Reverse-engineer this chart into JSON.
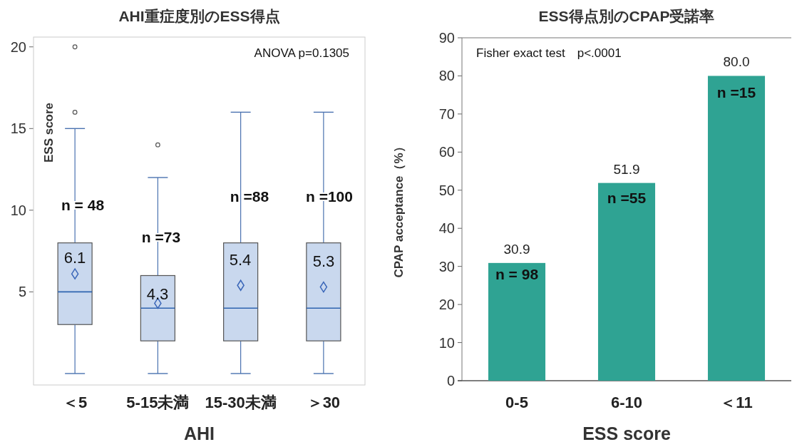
{
  "chart_data": [
    {
      "type": "box",
      "title": "AHI重症度別のESS得点",
      "xlabel": "AHI",
      "ylabel": "ESS score",
      "categories": [
        "＜5",
        "5-15未満",
        "15-30未満",
        "＞30"
      ],
      "ylim": [
        -0.7,
        20.6
      ],
      "yticks": [
        5,
        10,
        15,
        20
      ],
      "marker": "diamond",
      "grid": false,
      "series": [
        {
          "color": "#c9d8ee",
          "boxes": [
            {
              "low": 0,
              "q1": 3,
              "median": 5,
              "q3": 8,
              "high": 15,
              "mean": 6.1,
              "outliers": [
                16,
                20
              ]
            },
            {
              "low": 0,
              "q1": 2,
              "median": 4,
              "q3": 6,
              "high": 12,
              "mean": 4.3,
              "outliers": [
                14
              ]
            },
            {
              "low": 0,
              "q1": 2,
              "median": 4,
              "q3": 8,
              "high": 16,
              "mean": 5.4
            },
            {
              "low": 0,
              "q1": 2,
              "median": 4,
              "q3": 8,
              "high": 16,
              "mean": 5.3
            }
          ]
        }
      ],
      "annotations": [
        "ANOVA p=0.1305",
        "6.1",
        "4.3",
        "5.4",
        "5.3",
        "n = 48",
        "n =73",
        "n =88",
        "n =100"
      ]
    },
    {
      "type": "bar",
      "title": "ESS得点別のCPAP受諾率",
      "xlabel": "ESS score",
      "ylabel": "CPAP acceptance（%）",
      "categories": [
        "0-5",
        "6-10",
        "＜11"
      ],
      "ylim": [
        0,
        90
      ],
      "yticks": [
        0,
        10,
        20,
        30,
        40,
        50,
        60,
        70,
        80,
        90
      ],
      "grid": false,
      "series": [
        {
          "color": "#2fa393",
          "values": [
            30.9,
            51.9,
            80.0
          ],
          "value_labels": [
            "30.9",
            "51.9",
            "80.0"
          ]
        }
      ],
      "annotations": [
        "Fisher exact test　p<.0001",
        "n = 98",
        "n =55",
        "n =15"
      ]
    }
  ]
}
